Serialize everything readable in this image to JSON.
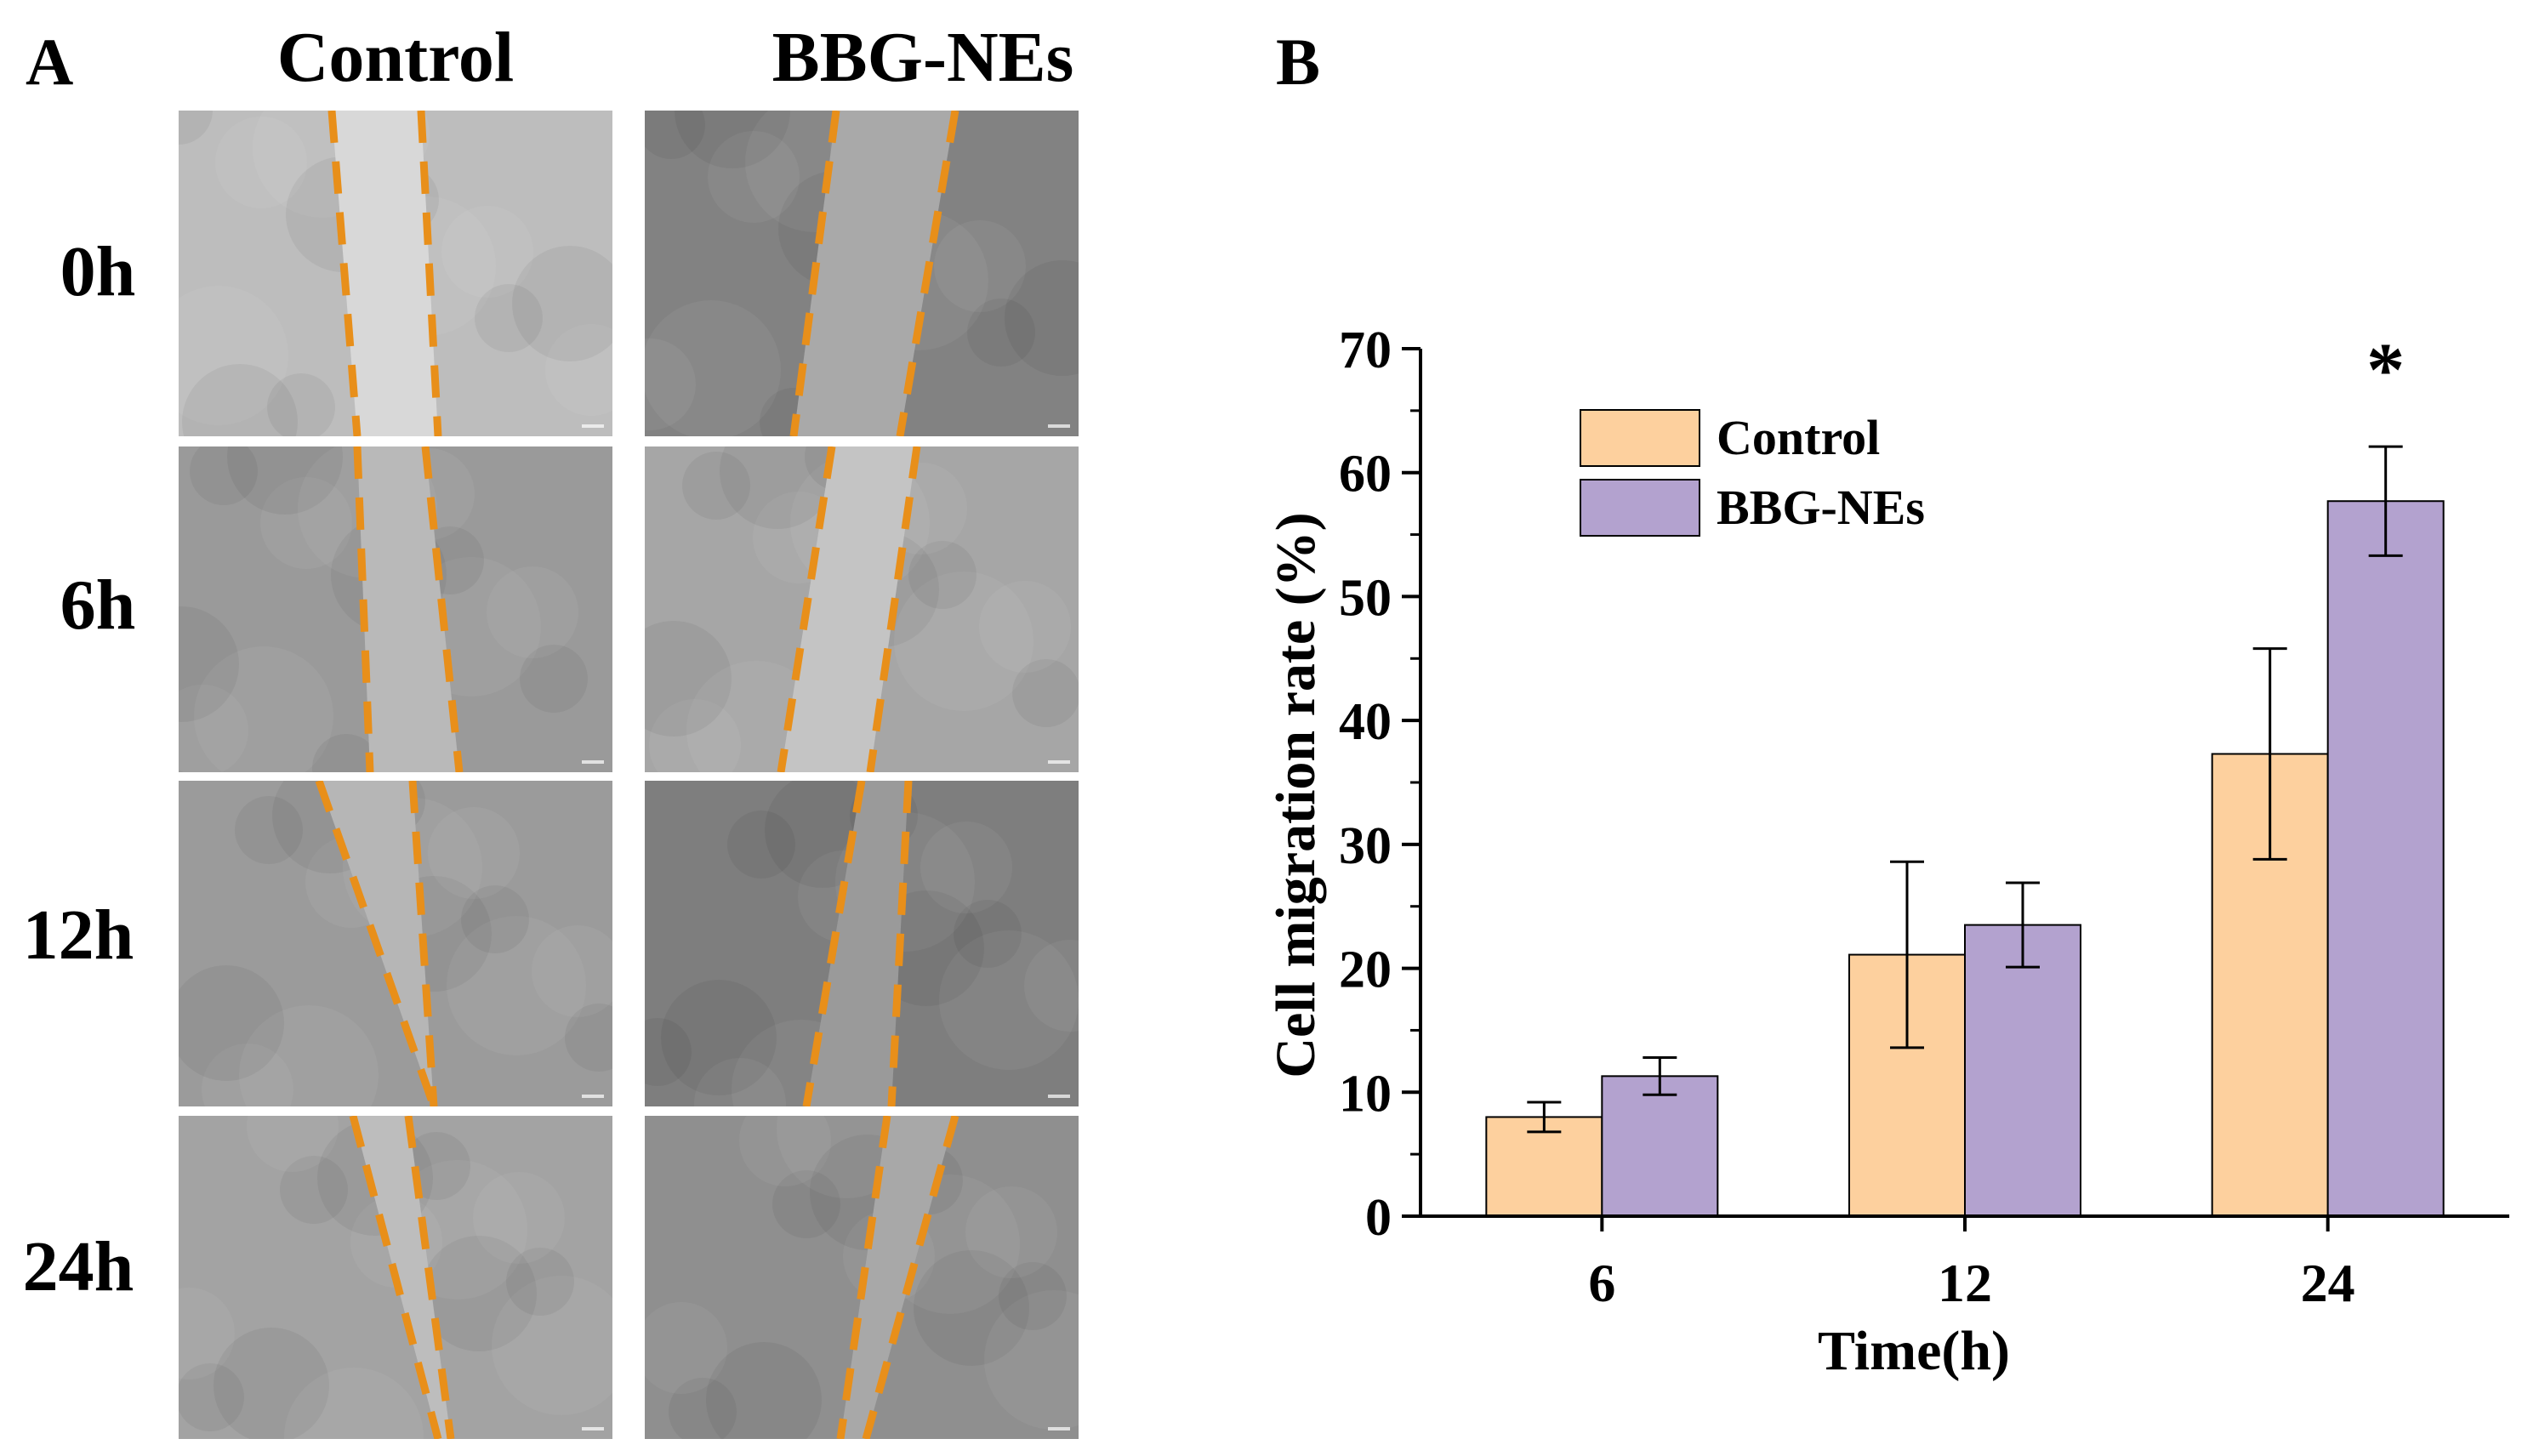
{
  "panel_a": {
    "letter": "A",
    "columns": [
      "Control",
      "BBG-NEs"
    ],
    "rows": [
      "0h",
      "6h",
      "12h",
      "24h"
    ]
  },
  "panel_b": {
    "letter": "B"
  },
  "colors": {
    "control": "#fdd09e",
    "bbg_nes": "#b3a2cf",
    "scratch_line": "#e88f1a"
  },
  "chart_data": {
    "type": "bar",
    "categories": [
      "6",
      "12",
      "24"
    ],
    "series": [
      {
        "name": "Control",
        "values": [
          8.0,
          21.1,
          37.3
        ],
        "errors": [
          1.2,
          7.5,
          8.5
        ]
      },
      {
        "name": "BBG-NEs",
        "values": [
          11.3,
          23.5,
          57.7
        ],
        "errors": [
          1.5,
          3.4,
          4.4
        ]
      }
    ],
    "annotations": [
      {
        "text": "*",
        "category": "24",
        "series": "BBG-NEs"
      }
    ],
    "xlabel": "Time(h)",
    "ylabel": "Cell migration rate (%)",
    "ylim": [
      0,
      70
    ],
    "yticks": [
      0,
      10,
      20,
      30,
      40,
      50,
      60,
      70
    ],
    "grid": false,
    "legend": "top-left"
  }
}
